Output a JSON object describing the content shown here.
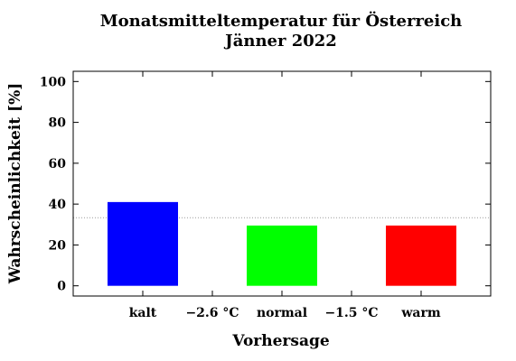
{
  "chart_data": {
    "type": "bar",
    "title": "Monatsmitteltemperatur für Österreich",
    "subtitle": "Jänner 2022",
    "xlabel": "Vorhersage",
    "ylabel": "Wahrscheinlichkeit [%]",
    "ylim": [
      -5,
      105
    ],
    "yticks": [
      0,
      20,
      40,
      60,
      80,
      100
    ],
    "categories": [
      "kalt",
      "normal",
      "warm"
    ],
    "values": [
      41,
      29.5,
      29.5
    ],
    "colors": [
      "#0000ff",
      "#00ff00",
      "#ff0000"
    ],
    "separators": [
      "−2.6 °C",
      "−1.5 °C"
    ],
    "reference_line": 33.3,
    "grid": false
  }
}
